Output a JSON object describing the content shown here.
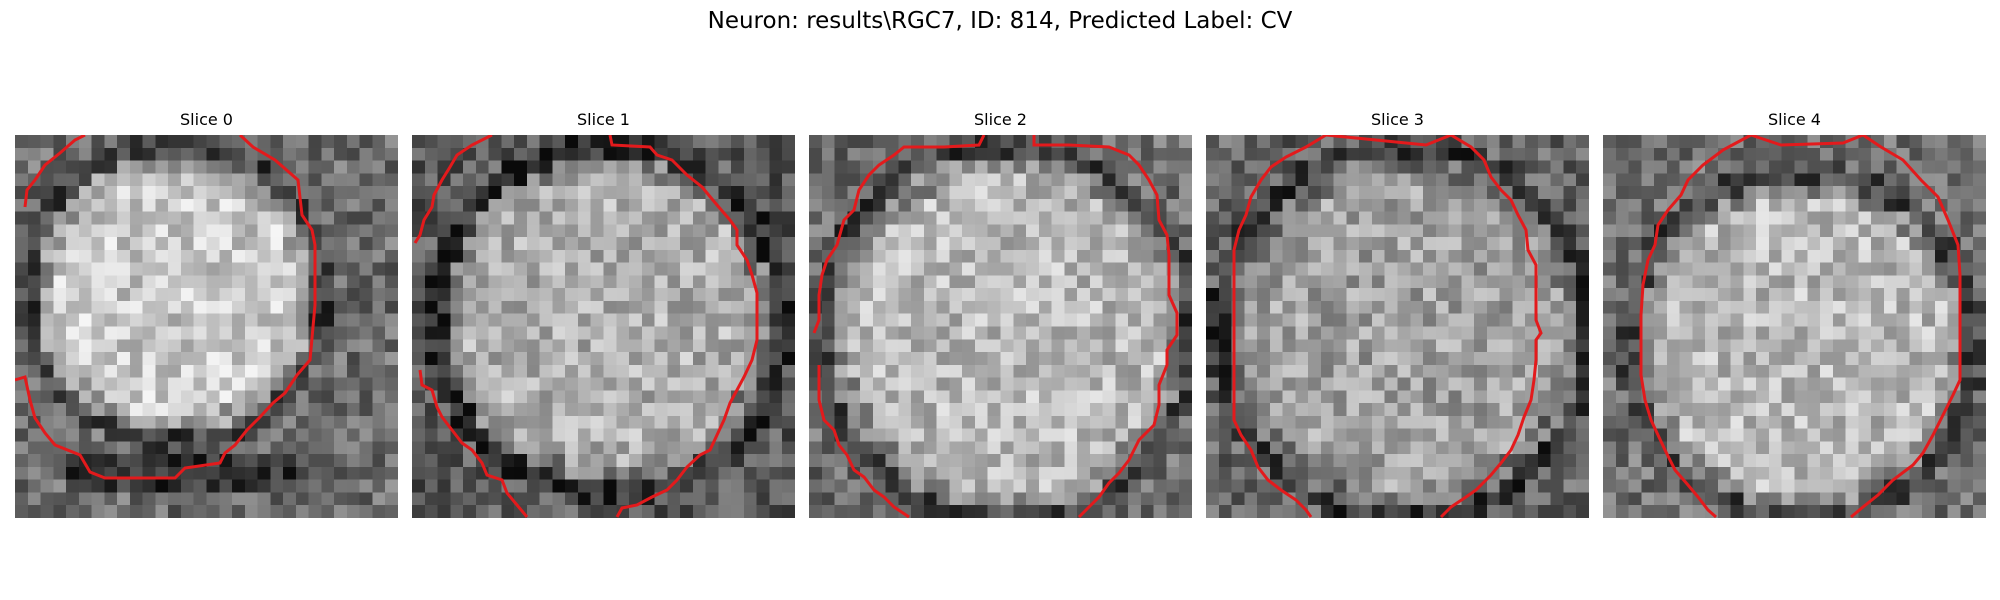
{
  "figure": {
    "title": "Neuron: results\\RGC7, ID: 814, Predicted Label: CV",
    "contour_color": "#e31a1c",
    "colormap": "gray",
    "panels": [
      {
        "title": "Slice 0",
        "description": "grayscale neuron crop; bright upper region with darker band near bottom"
      },
      {
        "title": "Slice 1",
        "description": "grayscale neuron crop, textured interior"
      },
      {
        "title": "Slice 2",
        "description": "grayscale neuron crop, bright interior"
      },
      {
        "title": "Slice 3",
        "description": "grayscale neuron crop, mottled interior"
      },
      {
        "title": "Slice 4",
        "description": "grayscale neuron crop, bright center"
      }
    ]
  }
}
